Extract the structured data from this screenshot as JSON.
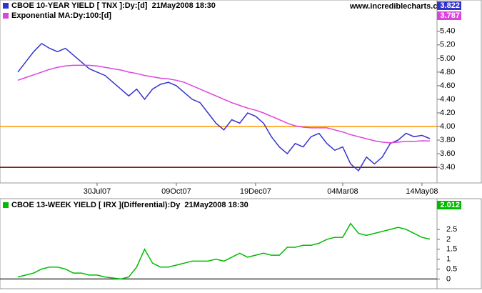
{
  "watermark": "www.incrediblecharts.com",
  "chart_data": [
    {
      "type": "line",
      "categories": [
        null,
        null,
        null,
        null,
        null,
        null,
        null,
        null,
        null,
        null,
        "30Jul07",
        null,
        null,
        null,
        null,
        null,
        null,
        null,
        null,
        null,
        "09Oct07",
        null,
        null,
        null,
        null,
        null,
        null,
        null,
        null,
        null,
        "19Dec07",
        null,
        null,
        null,
        null,
        null,
        null,
        null,
        null,
        null,
        null,
        "04Mar08",
        null,
        null,
        null,
        null,
        null,
        null,
        null,
        null,
        null,
        "14May08",
        null
      ],
      "series": [
        {
          "name": "CBOE 10-YEAR YIELD [ TNX ]:Dy:[d]  21May2008 18:30",
          "color": "#3333cc",
          "values": [
            4.8,
            4.95,
            5.1,
            5.22,
            5.15,
            5.1,
            5.15,
            5.05,
            4.95,
            4.85,
            4.8,
            4.75,
            4.65,
            4.55,
            4.45,
            4.55,
            4.4,
            4.55,
            4.62,
            4.65,
            4.6,
            4.5,
            4.4,
            4.35,
            4.2,
            4.05,
            3.95,
            4.1,
            4.05,
            4.2,
            4.15,
            4.05,
            3.85,
            3.7,
            3.6,
            3.75,
            3.7,
            3.85,
            3.9,
            3.75,
            3.65,
            3.7,
            3.45,
            3.35,
            3.55,
            3.45,
            3.55,
            3.75,
            3.8,
            3.9,
            3.85,
            3.87,
            3.822
          ]
        },
        {
          "name": "Exponential MA:Dy:100:[d]",
          "color": "#dd44dd",
          "values": [
            4.68,
            4.72,
            4.76,
            4.8,
            4.84,
            4.87,
            4.89,
            4.9,
            4.9,
            4.9,
            4.89,
            4.87,
            4.85,
            4.83,
            4.8,
            4.78,
            4.75,
            4.73,
            4.71,
            4.7,
            4.68,
            4.65,
            4.6,
            4.55,
            4.5,
            4.45,
            4.4,
            4.35,
            4.31,
            4.27,
            4.24,
            4.2,
            4.15,
            4.1,
            4.05,
            4.01,
            3.99,
            3.98,
            3.98,
            3.98,
            3.95,
            3.92,
            3.88,
            3.85,
            3.82,
            3.79,
            3.77,
            3.76,
            3.77,
            3.78,
            3.78,
            3.79,
            3.787
          ]
        }
      ],
      "hlines": [
        {
          "value": 4.0,
          "color": "#ff9900"
        },
        {
          "value": 3.4,
          "color": "#660000"
        }
      ],
      "ylim": [
        3.17,
        5.86
      ],
      "yticks": [
        {
          "value": 3.4,
          "label": "3.40"
        },
        {
          "value": 3.6,
          "label": "3.60"
        },
        {
          "value": 3.8,
          "label": "3.80"
        },
        {
          "value": 4.0,
          "label": "4.00"
        },
        {
          "value": 4.2,
          "label": "4.20"
        },
        {
          "value": 4.4,
          "label": "4.40"
        },
        {
          "value": 4.6,
          "label": "4.60"
        },
        {
          "value": 4.8,
          "label": "4.80"
        },
        {
          "value": 5.0,
          "label": "5.00"
        },
        {
          "value": 5.2,
          "label": "5.20"
        },
        {
          "value": 5.4,
          "label": "5.40"
        }
      ]
    },
    {
      "type": "line",
      "series": [
        {
          "name": "CBOE 13-WEEK YIELD [ IRX ](Differential):Dy  21May2008 18:30",
          "color": "#00bb00",
          "values": [
            0.1,
            0.2,
            0.3,
            0.5,
            0.6,
            0.6,
            0.5,
            0.3,
            0.3,
            0.2,
            0.2,
            0.1,
            0.05,
            0.0,
            0.1,
            0.6,
            1.5,
            0.8,
            0.6,
            0.6,
            0.7,
            0.8,
            0.9,
            0.9,
            0.9,
            1.0,
            0.9,
            1.1,
            1.3,
            1.1,
            1.2,
            1.3,
            1.2,
            1.2,
            1.6,
            1.6,
            1.7,
            1.7,
            1.8,
            2.0,
            2.1,
            2.1,
            2.8,
            2.3,
            2.2,
            2.3,
            2.4,
            2.5,
            2.6,
            2.5,
            2.3,
            2.1,
            2.012
          ]
        }
      ],
      "hlines": [
        {
          "value": 0,
          "color": "#444444"
        }
      ],
      "ylim": [
        -0.49,
        4.05
      ],
      "yticks": [
        0,
        0.5,
        1,
        1.5,
        2,
        2.5
      ]
    }
  ]
}
